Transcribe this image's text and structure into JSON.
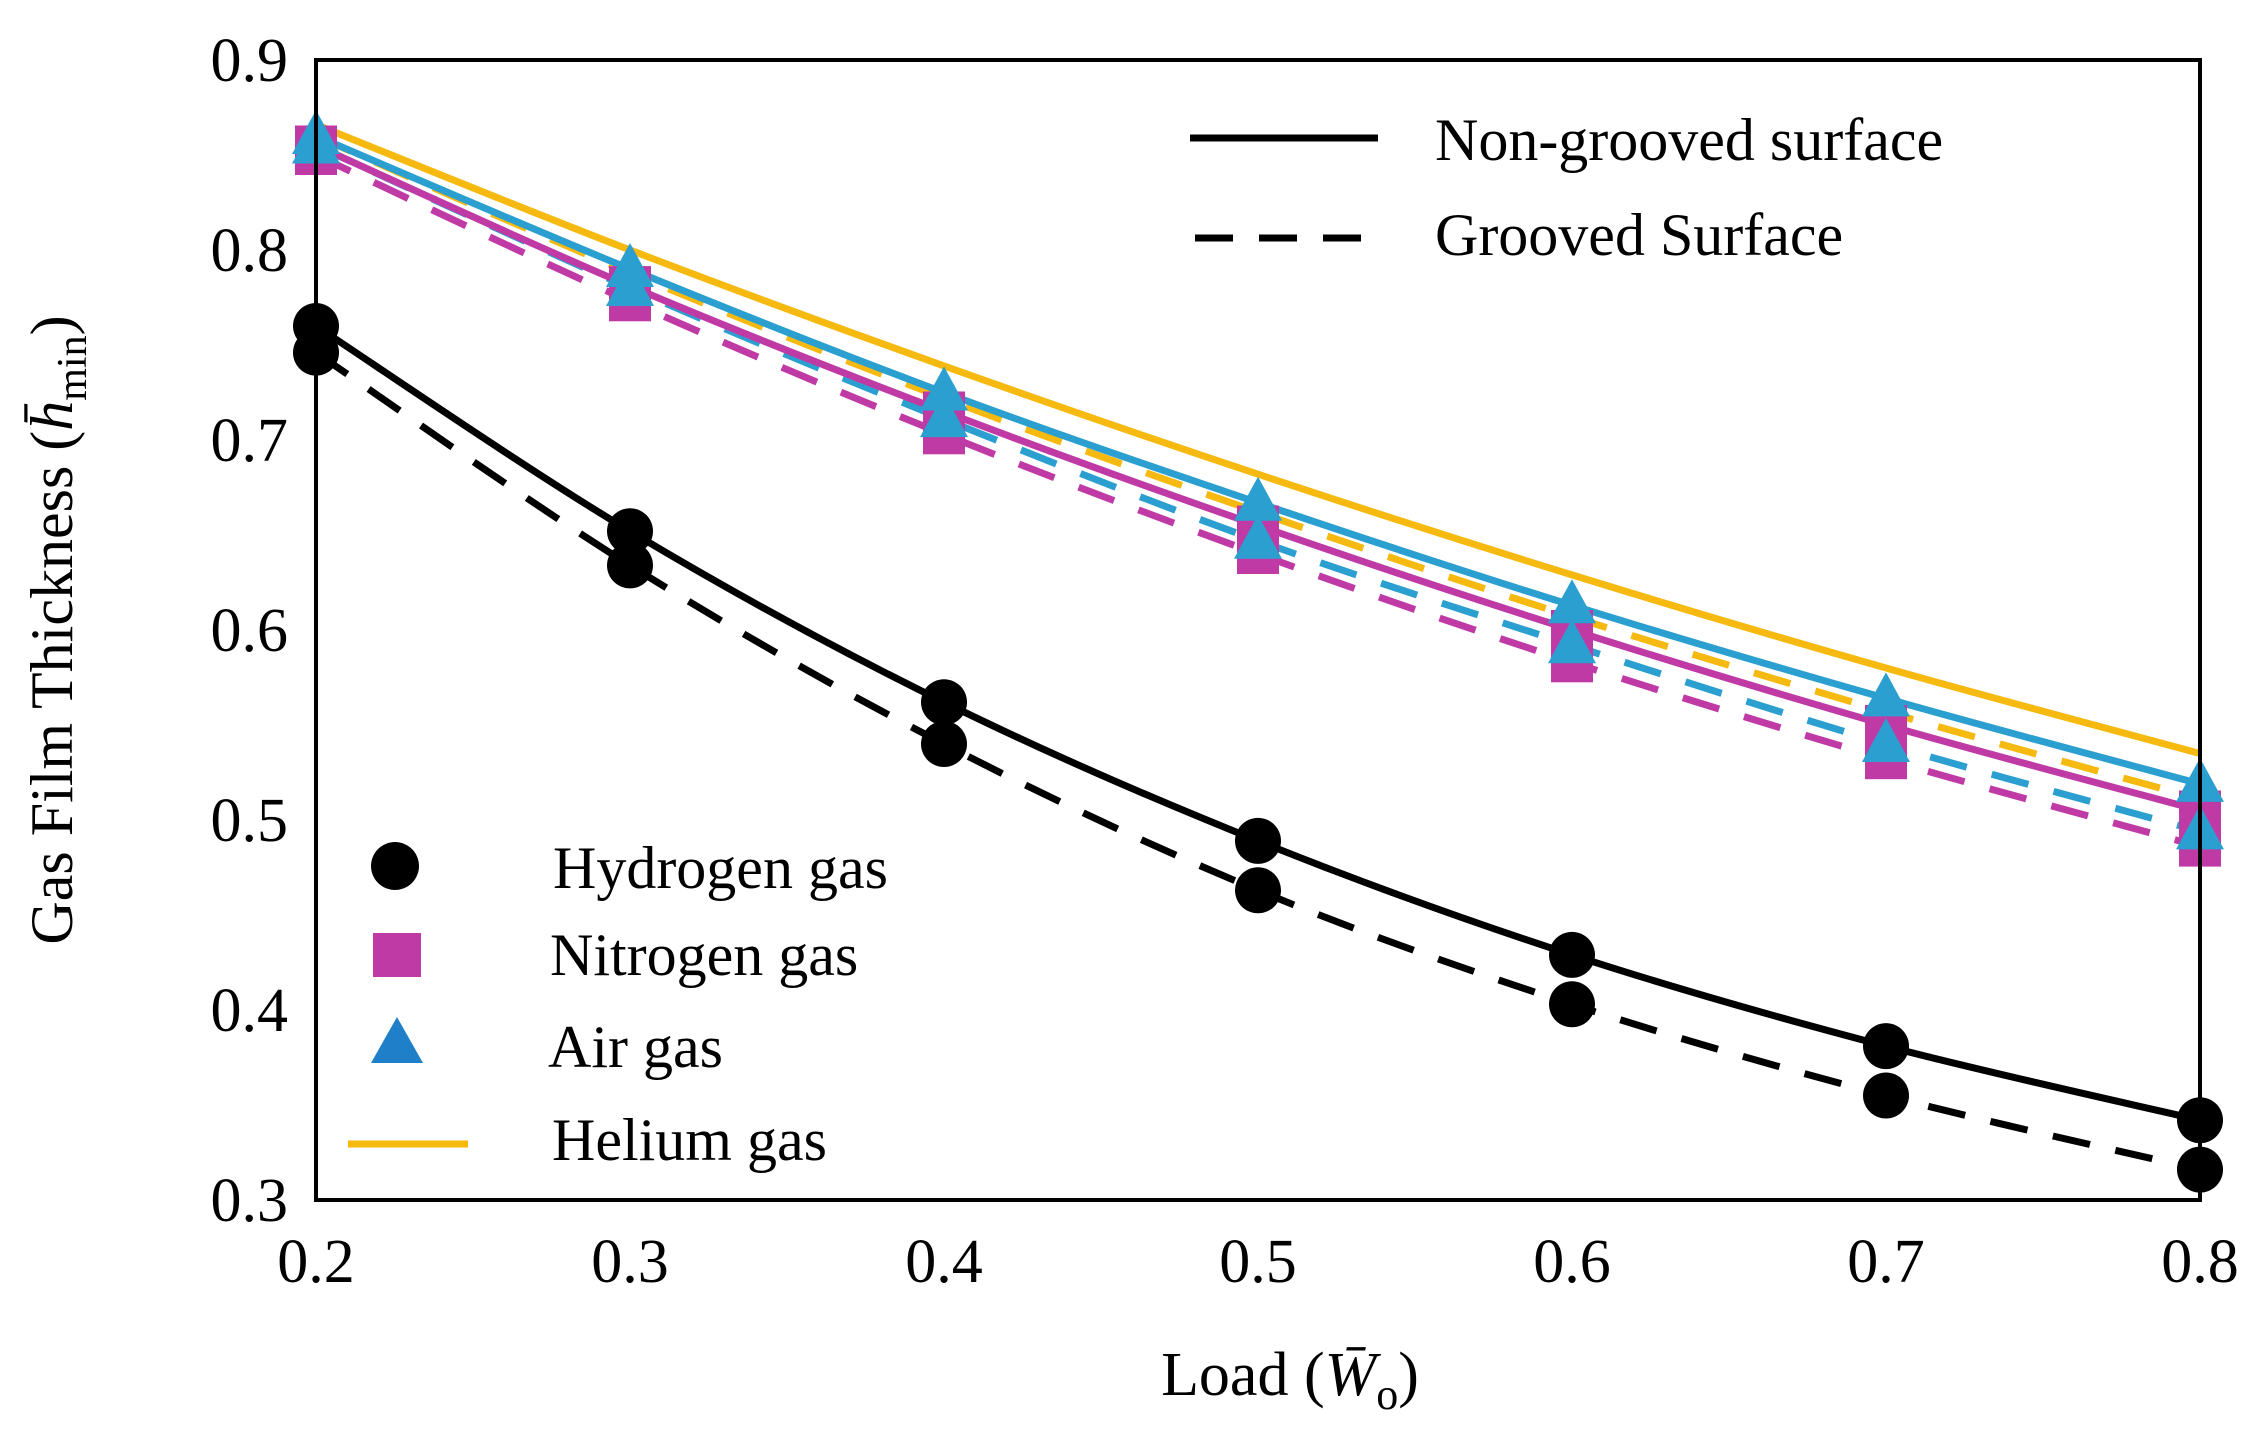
{
  "chart_data": {
    "type": "line",
    "title": "",
    "xlabel": "Load (W̄o)",
    "ylabel": "Gas Film Thickness (h̄min)",
    "xlabel_parts": {
      "prefix": "Load (",
      "symbol": "W̄",
      "subscript": "o",
      "suffix": ")"
    },
    "ylabel_parts": {
      "prefix": "Gas Film Thickness (",
      "symbol": "h̄",
      "subscript": "min",
      "suffix": ")"
    },
    "xlim": [
      0.2,
      0.8
    ],
    "ylim": [
      0.3,
      0.9
    ],
    "x_ticks": [
      0.2,
      0.3,
      0.4,
      0.5,
      0.6,
      0.7,
      0.8
    ],
    "x_tick_labels": [
      "0.2",
      "0.3",
      "0.4",
      "0.5",
      "0.6",
      "0.7",
      "0.8"
    ],
    "y_ticks": [
      0.3,
      0.4,
      0.5,
      0.6,
      0.7,
      0.8,
      0.9
    ],
    "y_tick_labels": [
      "0.3",
      "0.4",
      "0.5",
      "0.6",
      "0.7",
      "0.8",
      "0.9"
    ],
    "grid": false,
    "x": [
      0.2,
      0.3,
      0.4,
      0.5,
      0.6,
      0.7,
      0.8
    ],
    "series": [
      {
        "name": "Hydrogen gas",
        "surface": "Non-grooved surface",
        "marker": "circle",
        "color": "#000000",
        "dash": "solid",
        "values": [
          0.76,
          0.652,
          0.562,
          0.489,
          0.429,
          0.381,
          0.342
        ]
      },
      {
        "name": "Hydrogen gas",
        "surface": "Grooved Surface",
        "marker": "circle",
        "color": "#000000",
        "dash": "dashed",
        "values": [
          0.746,
          0.634,
          0.54,
          0.463,
          0.403,
          0.355,
          0.316
        ]
      },
      {
        "name": "Nitrogen gas",
        "surface": "Non-grooved surface",
        "marker": "square",
        "color": "#c03aa6",
        "dash": "solid",
        "values": [
          0.855,
          0.781,
          0.715,
          0.655,
          0.6,
          0.55,
          0.505
        ]
      },
      {
        "name": "Nitrogen gas",
        "surface": "Grooved Surface",
        "marker": "square",
        "color": "#c03aa6",
        "dash": "dashed",
        "values": [
          0.85,
          0.773,
          0.703,
          0.64,
          0.583,
          0.532,
          0.486
        ]
      },
      {
        "name": "Air gas",
        "surface": "Non-grooved surface",
        "marker": "triangle",
        "color": "#2a9fd0",
        "dash": "solid",
        "values": [
          0.86,
          0.79,
          0.725,
          0.667,
          0.613,
          0.564,
          0.519
        ]
      },
      {
        "name": "Air gas",
        "surface": "Grooved Surface",
        "marker": "triangle",
        "color": "#2a9fd0",
        "dash": "dashed",
        "values": [
          0.855,
          0.78,
          0.711,
          0.647,
          0.592,
          0.54,
          0.494
        ]
      },
      {
        "name": "Helium gas",
        "surface": "Non-grooved surface",
        "marker": "none",
        "color": "#f5b90f",
        "dash": "solid",
        "values": [
          0.866,
          0.8,
          0.739,
          0.682,
          0.629,
          0.58,
          0.535
        ]
      },
      {
        "name": "Helium gas",
        "surface": "Grooved Surface",
        "marker": "none",
        "color": "#f5b90f",
        "dash": "dashed",
        "values": [
          0.86,
          0.788,
          0.722,
          0.662,
          0.607,
          0.557,
          0.511
        ]
      }
    ],
    "legend_lines": [
      {
        "label": "Non-grooved surface",
        "dash": "solid",
        "color": "#000000"
      },
      {
        "label": "Grooved Surface",
        "dash": "dashed",
        "color": "#000000"
      }
    ],
    "legend_gases": [
      {
        "label": "Hydrogen gas",
        "marker": "circle",
        "color": "#000000"
      },
      {
        "label": "Nitrogen gas",
        "marker": "square",
        "color": "#c03aa6"
      },
      {
        "label": "Air gas",
        "marker": "triangle",
        "color": "#2a9fd0"
      },
      {
        "label": "Helium gas",
        "marker": "line",
        "color": "#f5b90f"
      }
    ],
    "legend_placement": {
      "surfaces": "top-right",
      "gases": "bottom-left"
    }
  }
}
